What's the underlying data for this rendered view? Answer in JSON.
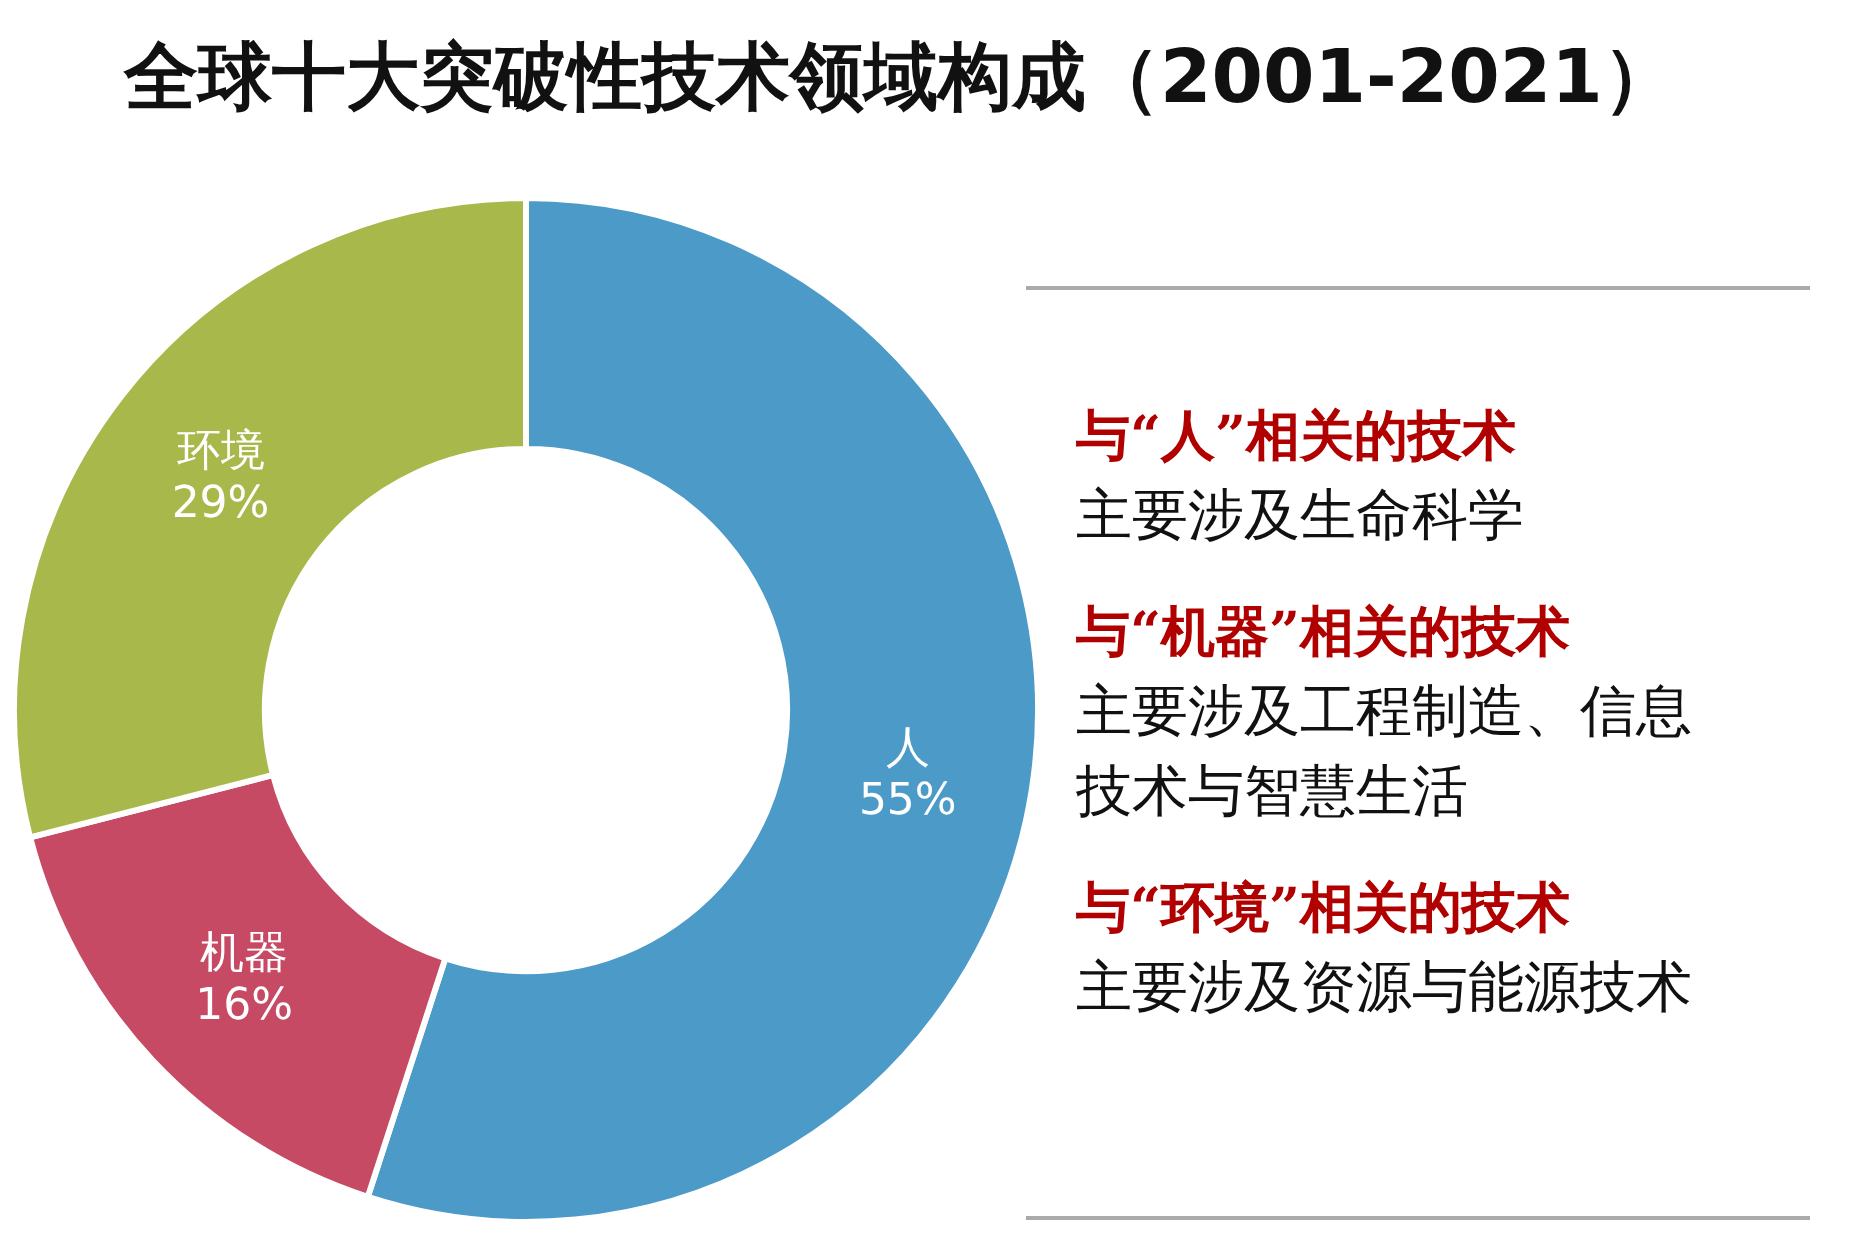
{
  "chart_data": {
    "type": "donut",
    "title": "全球十大突破性技术领域构成（2001-2021）",
    "categories": [
      "人",
      "机器",
      "环境"
    ],
    "values": [
      55,
      16,
      29
    ],
    "colors": [
      "#4c9ac8",
      "#c64a64",
      "#a9b84a"
    ],
    "value_labels": [
      "55%",
      "16%",
      "29%"
    ],
    "annotations": [
      "与“人”相关的技术",
      "主要涉及生命科学",
      "与“机器”相关的技术",
      "主要涉及工程制造、信息技术与智慧生活",
      "与“环境”相关的技术",
      "主要涉及资源与能源技术"
    ]
  }
}
